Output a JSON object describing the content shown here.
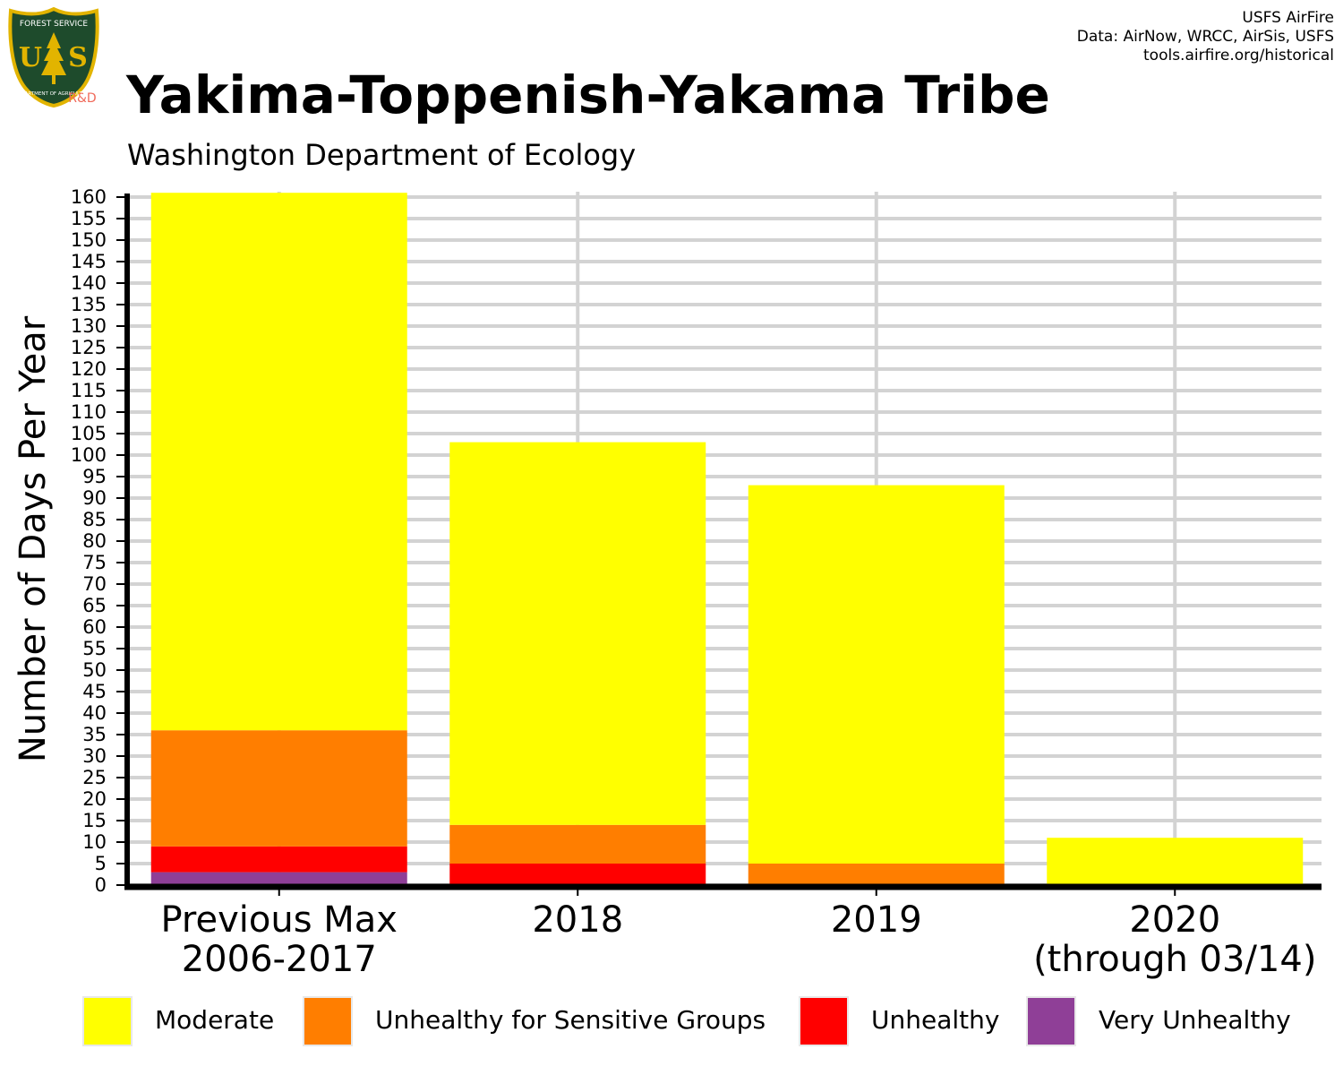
{
  "header": {
    "credits": [
      "USFS AirFire",
      "Data: AirNow, WRCC, AirSis, USFS",
      "tools.airfire.org/historical"
    ],
    "logo": {
      "top_text": "FOREST SERVICE",
      "letters_left": "U",
      "letters_right": "S",
      "bottom_text": "DEPARTMENT OF AGRICULTURE",
      "tag": "R&D",
      "icon": "tree-shield-icon"
    }
  },
  "chart_data": {
    "type": "bar",
    "stacked": true,
    "title": "Yakima-Toppenish-Yakama Tribe",
    "subtitle": "Washington Department of Ecology",
    "ylabel": "Number of Days Per Year",
    "xlabel": "",
    "ylim": [
      0,
      160
    ],
    "ytick_step": 5,
    "grid": true,
    "legend_position": "bottom",
    "categories": [
      {
        "line1": "Previous Max",
        "line2": "2006-2017"
      },
      {
        "line1": "2018",
        "line2": ""
      },
      {
        "line1": "2019",
        "line2": ""
      },
      {
        "line1": "2020",
        "line2": "(through 03/14)"
      }
    ],
    "series": [
      {
        "name": "Very Unhealthy",
        "color": "#8f3f97",
        "values": [
          3,
          0,
          0,
          0
        ]
      },
      {
        "name": "Unhealthy",
        "color": "#ff0000",
        "values": [
          6,
          5,
          0,
          0
        ]
      },
      {
        "name": "Unhealthy for Sensitive Groups",
        "color": "#ff7e00",
        "values": [
          27,
          9,
          5,
          0
        ]
      },
      {
        "name": "Moderate",
        "color": "#ffff00",
        "values": [
          125,
          89,
          88,
          11
        ]
      }
    ],
    "legend_order": [
      "Moderate",
      "Unhealthy for Sensitive Groups",
      "Unhealthy",
      "Very Unhealthy"
    ]
  }
}
